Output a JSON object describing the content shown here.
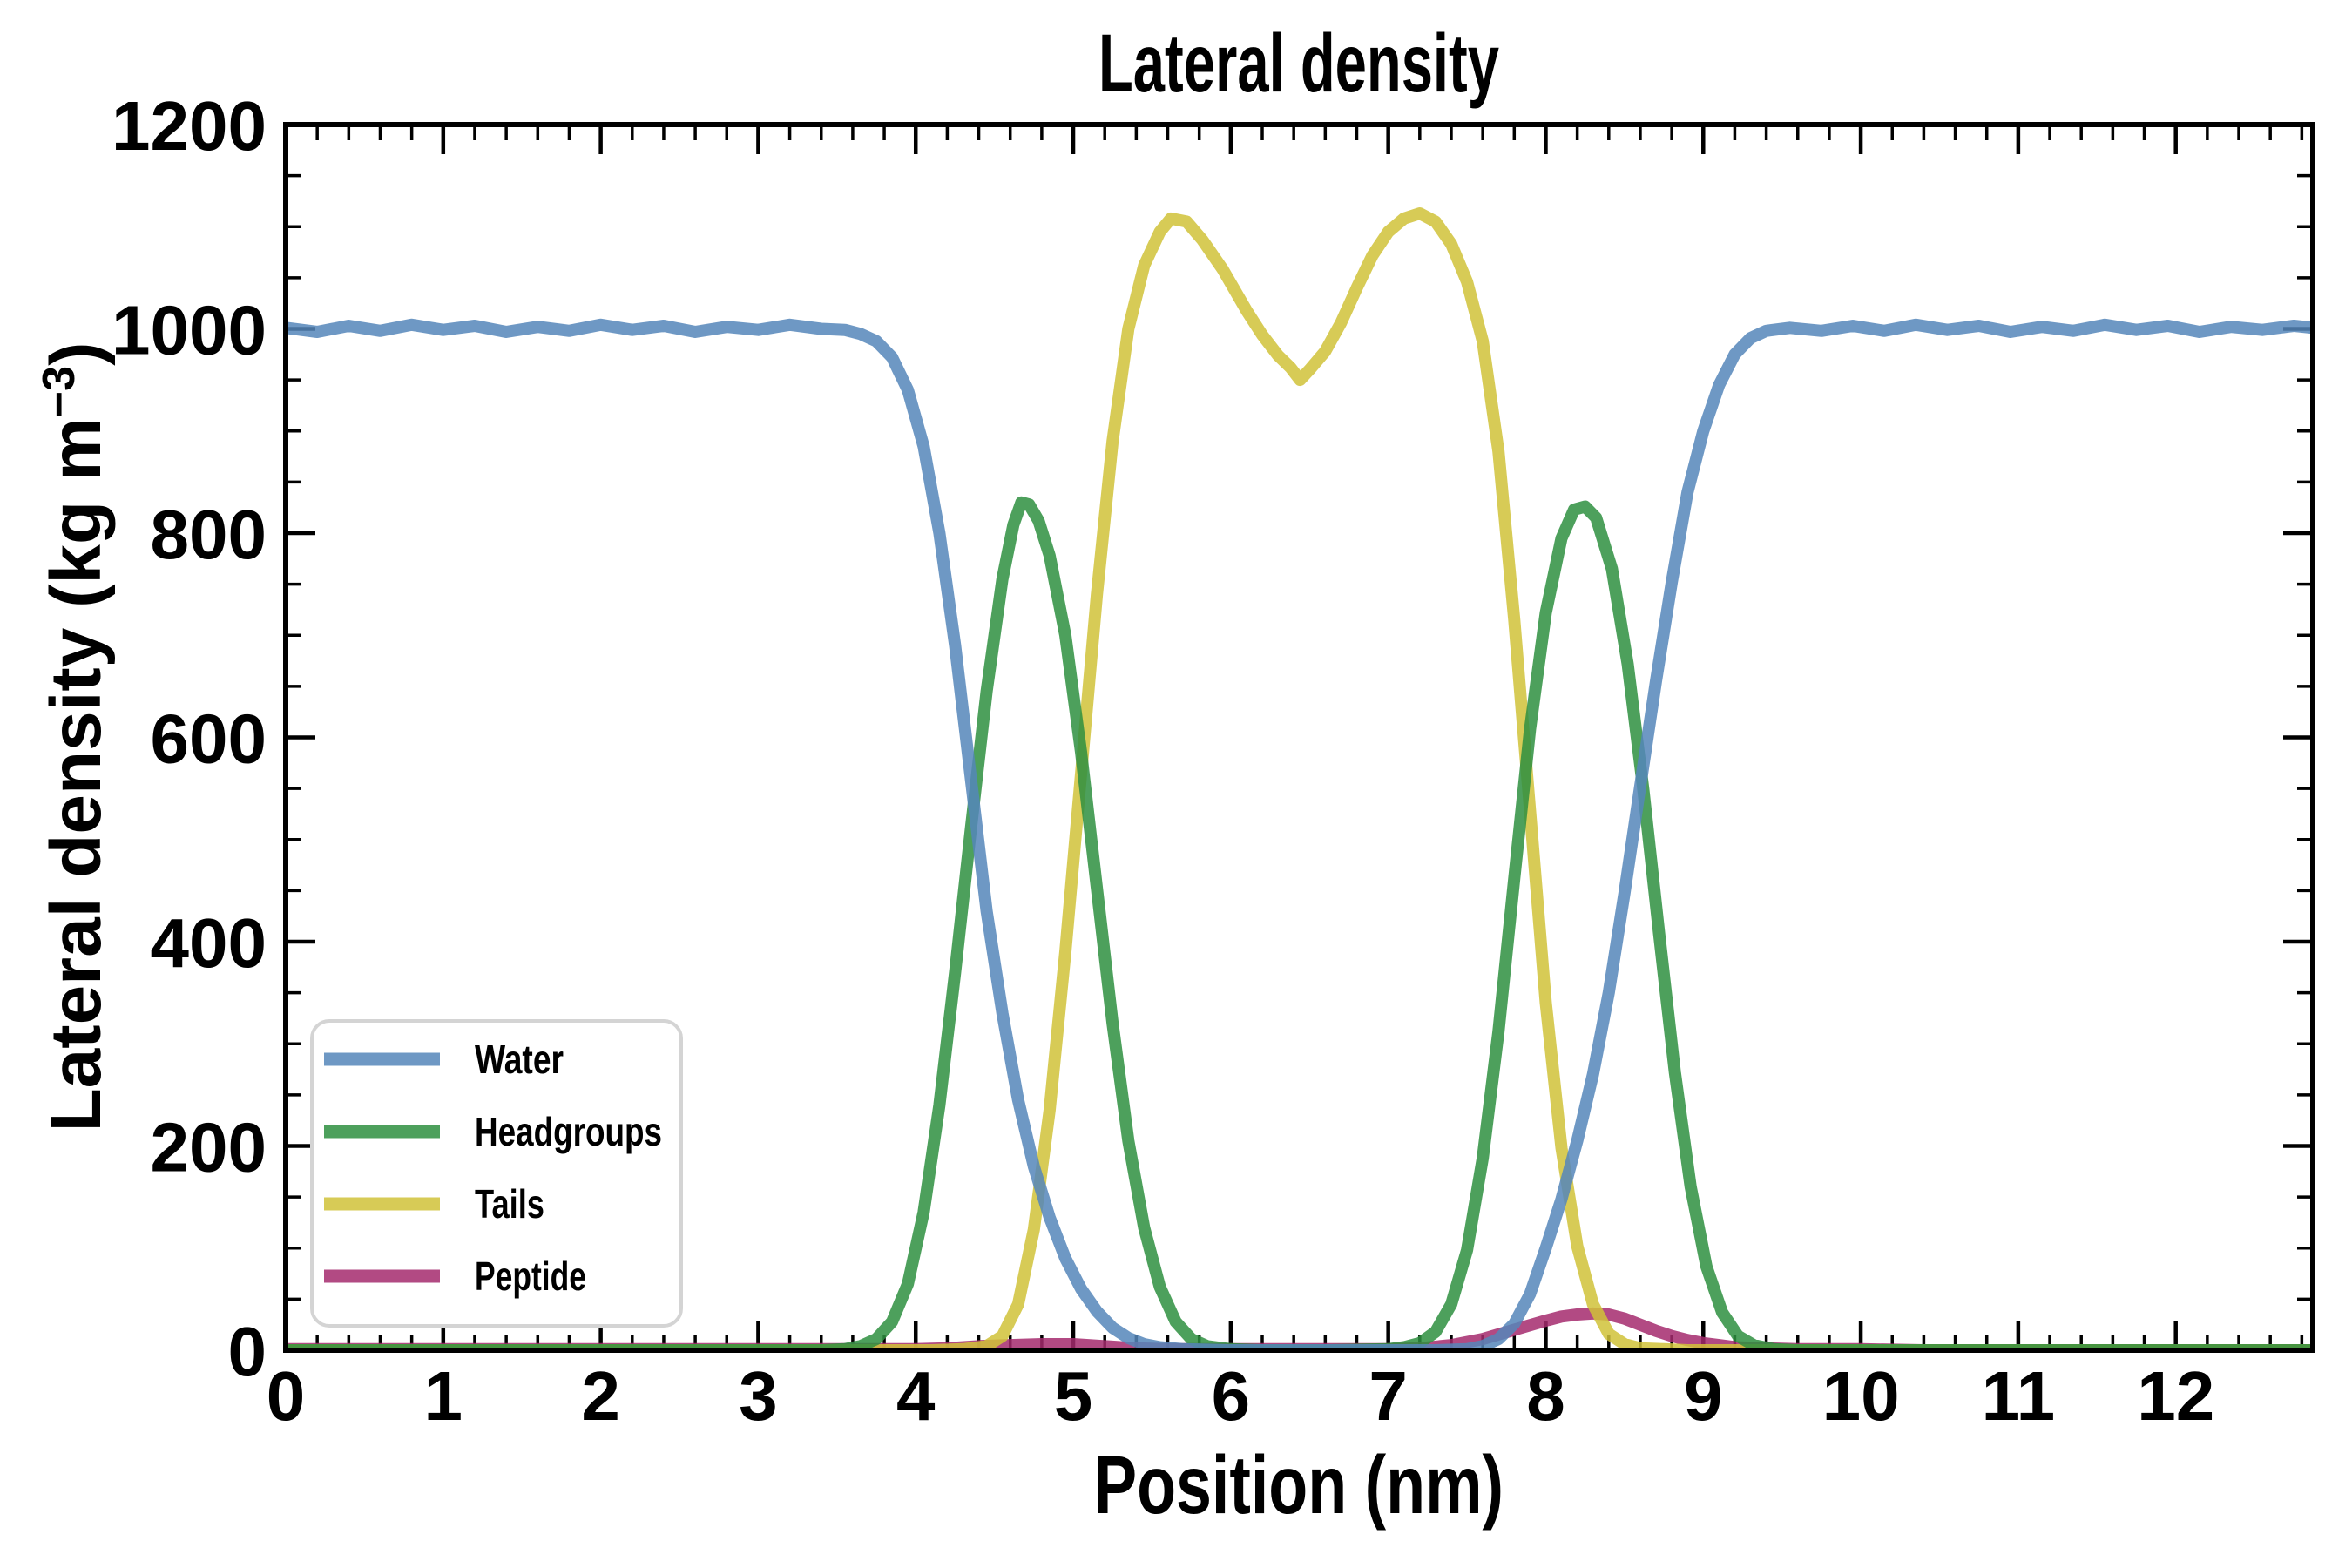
{
  "chart_data": {
    "type": "line",
    "title": "Lateral density",
    "xlabel": "Position (nm)",
    "ylabel": "Lateral density (kg m-3)",
    "ylabel_parts": {
      "pre": "Lateral density (kg m",
      "sup": "−3",
      "post": ")"
    },
    "xlim": [
      0,
      12.87
    ],
    "ylim": [
      0,
      1200
    ],
    "x_major_ticks": {
      "values": [
        0,
        1,
        2,
        3,
        4,
        5,
        6,
        7,
        8,
        9,
        10,
        11,
        12
      ],
      "labels": [
        "0",
        "1",
        "2",
        "3",
        "4",
        "5",
        "6",
        "7",
        "8",
        "9",
        "10",
        "11",
        "12"
      ]
    },
    "x_minor_step": 0.2,
    "y_major_ticks": {
      "values": [
        0,
        200,
        400,
        600,
        800,
        1000,
        1200
      ],
      "labels": [
        "0",
        "200",
        "400",
        "600",
        "800",
        "1000",
        "1200"
      ]
    },
    "y_minor_step": 50,
    "grid": false,
    "legend_position": "lower-left",
    "series": [
      {
        "name": "Water",
        "color": "#5586BA",
        "points": [
          [
            0,
            1001
          ],
          [
            0.2,
            997
          ],
          [
            0.4,
            1003
          ],
          [
            0.6,
            998
          ],
          [
            0.8,
            1004
          ],
          [
            1,
            999
          ],
          [
            1.2,
            1003
          ],
          [
            1.4,
            997
          ],
          [
            1.6,
            1002
          ],
          [
            1.8,
            998
          ],
          [
            2,
            1004
          ],
          [
            2.2,
            999
          ],
          [
            2.4,
            1003
          ],
          [
            2.6,
            997
          ],
          [
            2.8,
            1002
          ],
          [
            3,
            999
          ],
          [
            3.2,
            1004
          ],
          [
            3.4,
            1000
          ],
          [
            3.55,
            999
          ],
          [
            3.65,
            995
          ],
          [
            3.75,
            988
          ],
          [
            3.85,
            972
          ],
          [
            3.95,
            940
          ],
          [
            4.05,
            885
          ],
          [
            4.15,
            800
          ],
          [
            4.25,
            690
          ],
          [
            4.35,
            560
          ],
          [
            4.45,
            430
          ],
          [
            4.55,
            330
          ],
          [
            4.65,
            245
          ],
          [
            4.75,
            180
          ],
          [
            4.85,
            130
          ],
          [
            4.95,
            90
          ],
          [
            5.05,
            60
          ],
          [
            5.15,
            38
          ],
          [
            5.25,
            22
          ],
          [
            5.35,
            12
          ],
          [
            5.45,
            6
          ],
          [
            5.55,
            3
          ],
          [
            5.7,
            1
          ],
          [
            6,
            0
          ],
          [
            6.5,
            0
          ],
          [
            7,
            0
          ],
          [
            7.3,
            0
          ],
          [
            7.5,
            1
          ],
          [
            7.6,
            4
          ],
          [
            7.7,
            11
          ],
          [
            7.8,
            26
          ],
          [
            7.9,
            55
          ],
          [
            8,
            100
          ],
          [
            8.1,
            148
          ],
          [
            8.2,
            205
          ],
          [
            8.3,
            270
          ],
          [
            8.4,
            350
          ],
          [
            8.5,
            448
          ],
          [
            8.6,
            552
          ],
          [
            8.7,
            655
          ],
          [
            8.8,
            752
          ],
          [
            8.9,
            840
          ],
          [
            9,
            900
          ],
          [
            9.1,
            945
          ],
          [
            9.2,
            975
          ],
          [
            9.3,
            991
          ],
          [
            9.4,
            998
          ],
          [
            9.55,
            1001
          ],
          [
            9.75,
            998
          ],
          [
            9.95,
            1003
          ],
          [
            10.15,
            998
          ],
          [
            10.35,
            1004
          ],
          [
            10.55,
            999
          ],
          [
            10.75,
            1003
          ],
          [
            10.95,
            997
          ],
          [
            11.15,
            1002
          ],
          [
            11.35,
            998
          ],
          [
            11.55,
            1004
          ],
          [
            11.75,
            999
          ],
          [
            11.95,
            1003
          ],
          [
            12.15,
            997
          ],
          [
            12.35,
            1002
          ],
          [
            12.55,
            999
          ],
          [
            12.75,
            1003
          ],
          [
            12.87,
            1001
          ]
        ]
      },
      {
        "name": "Headgroups",
        "color": "#2E8F40",
        "points": [
          [
            0,
            0
          ],
          [
            0.5,
            0
          ],
          [
            1,
            0
          ],
          [
            1.5,
            0
          ],
          [
            2,
            0
          ],
          [
            2.5,
            0
          ],
          [
            3,
            0
          ],
          [
            3.4,
            0
          ],
          [
            3.55,
            1
          ],
          [
            3.65,
            4
          ],
          [
            3.75,
            11
          ],
          [
            3.85,
            28
          ],
          [
            3.95,
            65
          ],
          [
            4.05,
            135
          ],
          [
            4.15,
            240
          ],
          [
            4.25,
            370
          ],
          [
            4.35,
            510
          ],
          [
            4.45,
            645
          ],
          [
            4.55,
            755
          ],
          [
            4.62,
            808
          ],
          [
            4.67,
            830
          ],
          [
            4.72,
            828
          ],
          [
            4.78,
            812
          ],
          [
            4.85,
            778
          ],
          [
            4.95,
            700
          ],
          [
            5.05,
            585
          ],
          [
            5.15,
            452
          ],
          [
            5.25,
            320
          ],
          [
            5.35,
            205
          ],
          [
            5.45,
            120
          ],
          [
            5.55,
            62
          ],
          [
            5.65,
            28
          ],
          [
            5.75,
            11
          ],
          [
            5.85,
            4
          ],
          [
            6,
            1
          ],
          [
            6.2,
            0
          ],
          [
            6.6,
            0
          ],
          [
            7,
            1
          ],
          [
            7.1,
            3
          ],
          [
            7.2,
            7
          ],
          [
            7.3,
            18
          ],
          [
            7.4,
            45
          ],
          [
            7.5,
            98
          ],
          [
            7.6,
            188
          ],
          [
            7.7,
            312
          ],
          [
            7.8,
            462
          ],
          [
            7.9,
            608
          ],
          [
            8,
            722
          ],
          [
            8.1,
            795
          ],
          [
            8.18,
            823
          ],
          [
            8.25,
            826
          ],
          [
            8.32,
            815
          ],
          [
            8.42,
            765
          ],
          [
            8.52,
            672
          ],
          [
            8.62,
            548
          ],
          [
            8.72,
            408
          ],
          [
            8.82,
            272
          ],
          [
            8.92,
            160
          ],
          [
            9.02,
            82
          ],
          [
            9.12,
            37
          ],
          [
            9.22,
            14
          ],
          [
            9.32,
            5
          ],
          [
            9.45,
            1
          ],
          [
            9.6,
            0
          ],
          [
            10,
            0
          ],
          [
            10.5,
            0
          ],
          [
            11,
            0
          ],
          [
            11.5,
            0
          ],
          [
            12,
            0
          ],
          [
            12.5,
            0
          ],
          [
            12.87,
            0
          ]
        ]
      },
      {
        "name": "Tails",
        "color": "#D0C238",
        "points": [
          [
            0,
            0
          ],
          [
            0.5,
            0
          ],
          [
            1,
            0
          ],
          [
            1.5,
            0
          ],
          [
            2,
            0
          ],
          [
            2.5,
            0
          ],
          [
            3,
            0
          ],
          [
            3.5,
            0
          ],
          [
            3.9,
            0
          ],
          [
            4.1,
            0
          ],
          [
            4.3,
            1
          ],
          [
            4.45,
            4
          ],
          [
            4.55,
            14
          ],
          [
            4.65,
            45
          ],
          [
            4.75,
            118
          ],
          [
            4.85,
            235
          ],
          [
            4.95,
            390
          ],
          [
            5.05,
            565
          ],
          [
            5.15,
            740
          ],
          [
            5.25,
            890
          ],
          [
            5.35,
            1000
          ],
          [
            5.45,
            1062
          ],
          [
            5.55,
            1095
          ],
          [
            5.62,
            1108
          ],
          [
            5.72,
            1105
          ],
          [
            5.82,
            1087
          ],
          [
            5.95,
            1058
          ],
          [
            6.1,
            1018
          ],
          [
            6.2,
            994
          ],
          [
            6.3,
            974
          ],
          [
            6.38,
            962
          ],
          [
            6.44,
            950
          ],
          [
            6.5,
            960
          ],
          [
            6.6,
            978
          ],
          [
            6.7,
            1006
          ],
          [
            6.8,
            1040
          ],
          [
            6.9,
            1072
          ],
          [
            7,
            1095
          ],
          [
            7.1,
            1108
          ],
          [
            7.2,
            1113
          ],
          [
            7.3,
            1105
          ],
          [
            7.4,
            1083
          ],
          [
            7.5,
            1046
          ],
          [
            7.6,
            988
          ],
          [
            7.7,
            880
          ],
          [
            7.8,
            715
          ],
          [
            7.9,
            528
          ],
          [
            8,
            340
          ],
          [
            8.1,
            198
          ],
          [
            8.2,
            102
          ],
          [
            8.3,
            45
          ],
          [
            8.4,
            16
          ],
          [
            8.5,
            6
          ],
          [
            8.6,
            2
          ],
          [
            8.75,
            1
          ],
          [
            8.9,
            0
          ],
          [
            9.3,
            0
          ],
          [
            9.7,
            0
          ],
          [
            10.1,
            0
          ],
          [
            10.6,
            0
          ],
          [
            11.1,
            0
          ],
          [
            11.6,
            0
          ],
          [
            12.1,
            0
          ],
          [
            12.6,
            0
          ],
          [
            12.87,
            0
          ]
        ]
      },
      {
        "name": "Peptide",
        "color": "#A52A6D",
        "points": [
          [
            0,
            1
          ],
          [
            0.5,
            1
          ],
          [
            1,
            1
          ],
          [
            1.5,
            1
          ],
          [
            2,
            1
          ],
          [
            2.5,
            1
          ],
          [
            3,
            1
          ],
          [
            3.5,
            1
          ],
          [
            4,
            1
          ],
          [
            4.2,
            2
          ],
          [
            4.4,
            4
          ],
          [
            4.6,
            5
          ],
          [
            4.8,
            6
          ],
          [
            5,
            6
          ],
          [
            5.2,
            4
          ],
          [
            5.4,
            2
          ],
          [
            5.6,
            1
          ],
          [
            6,
            1
          ],
          [
            6.5,
            1
          ],
          [
            7,
            1
          ],
          [
            7.2,
            2
          ],
          [
            7.4,
            5
          ],
          [
            7.6,
            11
          ],
          [
            7.8,
            20
          ],
          [
            8,
            29
          ],
          [
            8.1,
            33
          ],
          [
            8.2,
            35
          ],
          [
            8.3,
            36
          ],
          [
            8.4,
            35
          ],
          [
            8.5,
            31
          ],
          [
            8.6,
            25
          ],
          [
            8.7,
            19
          ],
          [
            8.8,
            14
          ],
          [
            8.9,
            10
          ],
          [
            9,
            7
          ],
          [
            9.1,
            5
          ],
          [
            9.2,
            3
          ],
          [
            9.4,
            2
          ],
          [
            9.6,
            1
          ],
          [
            10,
            1
          ],
          [
            10.4,
            0
          ],
          [
            11,
            0
          ],
          [
            11.5,
            0
          ],
          [
            12,
            0
          ],
          [
            12.5,
            0
          ],
          [
            12.87,
            0
          ]
        ]
      }
    ]
  }
}
